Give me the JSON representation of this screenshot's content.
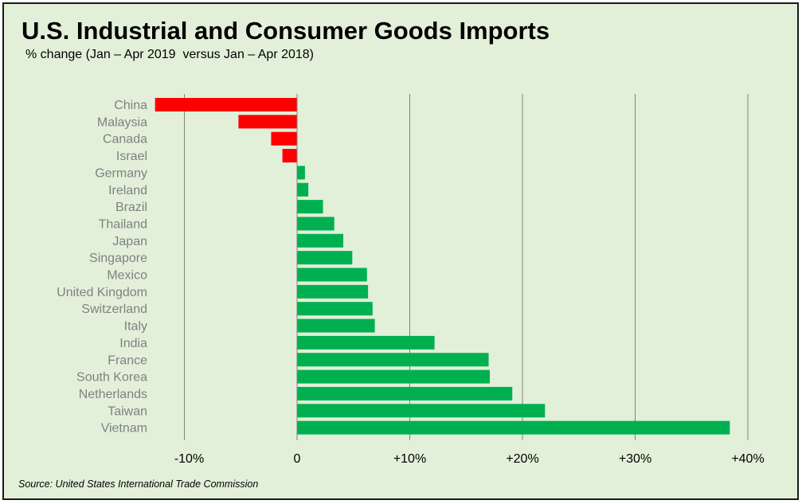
{
  "chart_data": {
    "type": "bar",
    "orientation": "horizontal",
    "title": "U.S. Industrial and Consumer Goods Imports",
    "subtitle": "% change (Jan – Apr 2019  versus Jan – Apr 2018)",
    "source": "Source: United States International Trade Commission",
    "xlabel": "",
    "ylabel": "",
    "categories": [
      "China",
      "Malaysia",
      "Canada",
      "Israel",
      "Germany",
      "Ireland",
      "Brazil",
      "Thailand",
      "Japan",
      "Singapore",
      "Mexico",
      "United Kingdom",
      "Switzerland",
      "Italy",
      "India",
      "France",
      "South Korea",
      "Netherlands",
      "Taiwan",
      "Vietnam"
    ],
    "values": [
      -12.6,
      -5.2,
      -2.3,
      -1.3,
      0.7,
      1.0,
      2.3,
      3.3,
      4.1,
      4.9,
      6.2,
      6.3,
      6.7,
      6.9,
      12.2,
      17.0,
      17.1,
      19.1,
      22.0,
      38.4
    ],
    "xlim": [
      -13,
      40
    ],
    "xticks": [
      -10,
      0,
      10,
      20,
      30,
      40
    ],
    "xtick_labels": [
      "-10%",
      "0",
      "+10%",
      "+20%",
      "+30%",
      "+40%"
    ],
    "grid": "vertical",
    "legend": "none",
    "colors": {
      "negative": "#ff0000",
      "positive": "#00b050",
      "gridline": "#808080",
      "background": "#e2f0d9"
    }
  }
}
